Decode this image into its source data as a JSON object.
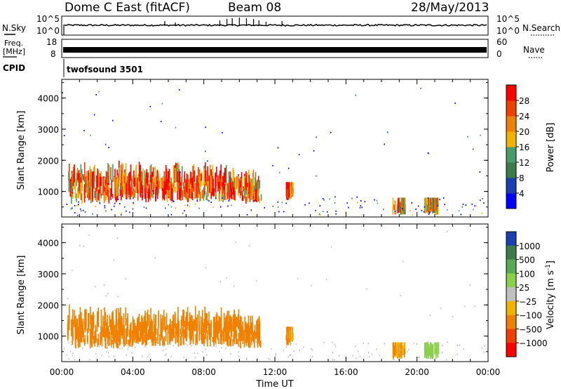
{
  "header": {
    "station": "Dome C East (fitACF)",
    "beam": "Beam 08",
    "date": "28/May/2013"
  },
  "noise_panel": {
    "left_label": "N.Sky",
    "right_label": "N.Search",
    "left_ticks": [
      "10^5",
      "10^0"
    ],
    "right_ticks": [
      "10^5",
      "10^0"
    ]
  },
  "freq_panel": {
    "left_label_1": "Freq.",
    "left_label_2": "[MHz]",
    "right_label": "Nave",
    "left_ticks": [
      "18",
      "8"
    ],
    "right_ticks": [
      "60",
      "0"
    ]
  },
  "cpid": {
    "label": "CPID",
    "value": "twofsound 3501"
  },
  "chart_data": [
    {
      "type": "heatmap",
      "title": "",
      "xlabel": "",
      "ylabel": "Slant Range [km]",
      "xlim": [
        "00:00",
        "24:00"
      ],
      "ylim": [
        180,
        4600
      ],
      "yticks": [
        "1000",
        "2000",
        "3000",
        "4000"
      ],
      "colorbar_label": "Power [dB]",
      "colorbar_ticks": [
        "4",
        "8",
        "12",
        "16",
        "20",
        "24",
        "28"
      ],
      "colorbar_colors": [
        "#0000ff",
        "#1a3fb0",
        "#3d7a4a",
        "#4a9a6a",
        "#f0b400",
        "#f08000",
        "#f04000",
        "#ff0000"
      ],
      "regions": [
        {
          "t0": 0.3,
          "t1": 3.2,
          "r0": 600,
          "r1": 1900,
          "level": 26
        },
        {
          "t0": 3.0,
          "t1": 10.0,
          "r0": 650,
          "r1": 1800,
          "level": 27
        },
        {
          "t0": 10.0,
          "t1": 11.2,
          "r0": 600,
          "r1": 1500,
          "level": 25
        },
        {
          "t0": 12.6,
          "t1": 13.0,
          "r0": 700,
          "r1": 1100,
          "level": 24
        },
        {
          "t0": 18.6,
          "t1": 19.3,
          "r0": 250,
          "r1": 600,
          "level": 20
        },
        {
          "t0": 20.4,
          "t1": 21.2,
          "r0": 250,
          "r1": 600,
          "level": 18
        }
      ]
    },
    {
      "type": "heatmap",
      "title": "",
      "xlabel": "Time UT",
      "ylabel": "Slant Range [km]",
      "xlim": [
        "00:00",
        "24:00"
      ],
      "ylim": [
        180,
        4600
      ],
      "xticks": [
        "00:00",
        "04:00",
        "08:00",
        "12:00",
        "16:00",
        "20:00",
        "00:00"
      ],
      "yticks": [
        "1000",
        "2000",
        "3000",
        "4000"
      ],
      "colorbar_label": "Velocity [m s^-1]",
      "colorbar_ticks": [
        "1000",
        "500",
        "100",
        "25",
        "−25",
        "−100",
        "−500",
        "−1000"
      ],
      "colorbar_colors": [
        "#1a3fb0",
        "#3d7a4a",
        "#5aa85a",
        "#8ad04a",
        "#c0c0c0",
        "#f0b400",
        "#f08000",
        "#f04000",
        "#ff0000"
      ],
      "regions": [
        {
          "t0": 0.3,
          "t1": 3.2,
          "r0": 600,
          "r1": 1900,
          "level": -150
        },
        {
          "t0": 3.0,
          "t1": 10.0,
          "r0": 650,
          "r1": 1800,
          "level": -200
        },
        {
          "t0": 10.0,
          "t1": 11.2,
          "r0": 600,
          "r1": 1500,
          "level": -180
        },
        {
          "t0": 12.6,
          "t1": 13.0,
          "r0": 700,
          "r1": 1100,
          "level": -120
        },
        {
          "t0": 18.6,
          "t1": 19.3,
          "r0": 250,
          "r1": 600,
          "level": -90
        },
        {
          "t0": 20.4,
          "t1": 21.2,
          "r0": 250,
          "r1": 600,
          "level": 60
        }
      ]
    }
  ],
  "time_axis": {
    "label": "Time UT",
    "ticks": [
      "00:00",
      "04:00",
      "08:00",
      "12:00",
      "16:00",
      "20:00",
      "00:00"
    ]
  }
}
